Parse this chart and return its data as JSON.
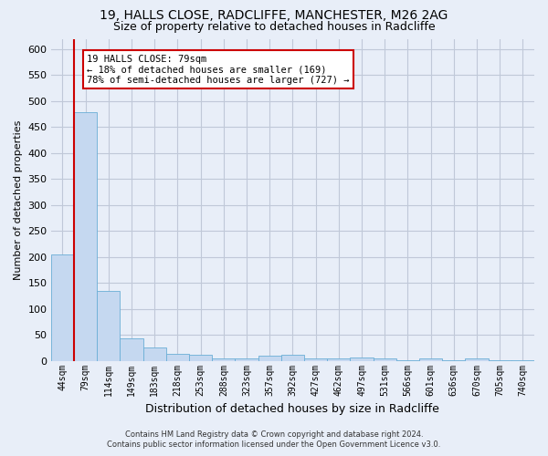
{
  "title_line1": "19, HALLS CLOSE, RADCLIFFE, MANCHESTER, M26 2AG",
  "title_line2": "Size of property relative to detached houses in Radcliffe",
  "xlabel": "Distribution of detached houses by size in Radcliffe",
  "ylabel": "Number of detached properties",
  "annotation_title": "19 HALLS CLOSE: 79sqm",
  "annotation_line1": "← 18% of detached houses are smaller (169)",
  "annotation_line2": "78% of semi-detached houses are larger (727) →",
  "footer_line1": "Contains HM Land Registry data © Crown copyright and database right 2024.",
  "footer_line2": "Contains public sector information licensed under the Open Government Licence v3.0.",
  "bin_labels": [
    "44sqm",
    "79sqm",
    "114sqm",
    "149sqm",
    "183sqm",
    "218sqm",
    "253sqm",
    "288sqm",
    "323sqm",
    "357sqm",
    "392sqm",
    "427sqm",
    "462sqm",
    "497sqm",
    "531sqm",
    "566sqm",
    "601sqm",
    "636sqm",
    "670sqm",
    "705sqm",
    "740sqm"
  ],
  "bar_heights": [
    205,
    478,
    135,
    43,
    25,
    14,
    12,
    5,
    5,
    10,
    11,
    5,
    5,
    6,
    5,
    1,
    5,
    1,
    5,
    1,
    1
  ],
  "bar_color": "#c5d8f0",
  "bar_edge_color": "#6aaed6",
  "grid_color": "#c0c8d8",
  "background_color": "#e8eef8",
  "red_line_bin_index": 1,
  "red_line_color": "#cc0000",
  "annotation_box_facecolor": "#ffffff",
  "annotation_box_edgecolor": "#cc0000",
  "ylim": [
    0,
    620
  ],
  "yticks": [
    0,
    50,
    100,
    150,
    200,
    250,
    300,
    350,
    400,
    450,
    500,
    550,
    600
  ]
}
